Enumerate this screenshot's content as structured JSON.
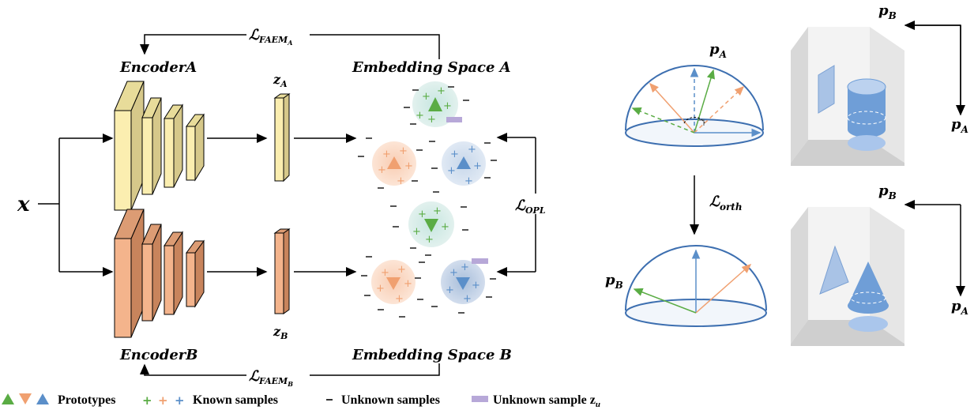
{
  "left": {
    "input_label": "x",
    "encoder_a_label": "EncoderA",
    "encoder_b_label": "EncoderB",
    "z_a_label": "z",
    "z_a_sub": "A",
    "z_b_label": "z",
    "z_b_sub": "B",
    "embedding_a_label": "Embedding Space A",
    "embedding_b_label": "Embedding Space B",
    "loss_faem_a": "ℒ",
    "loss_faem_a_sub": "FAEM",
    "loss_faem_a_subsub": "A",
    "loss_faem_b": "ℒ",
    "loss_faem_b_sub": "FAEM",
    "loss_faem_b_subsub": "B",
    "loss_opl": "ℒ",
    "loss_opl_sub": "OPL"
  },
  "right": {
    "loss_orth": "ℒ",
    "loss_orth_sub": "orth",
    "pa_top": "p",
    "pa_top_sub": "A",
    "pb_bottom": "p",
    "pb_bottom_sub": "B",
    "cube1_pb": "p",
    "cube1_pb_sub": "B",
    "cube1_pa": "p",
    "cube1_pa_sub": "A",
    "cube2_pb": "p",
    "cube2_pb_sub": "B",
    "cube2_pa": "p",
    "cube2_pa_sub": "A"
  },
  "legend": {
    "prototypes": "Prototypes",
    "known": "Known samples",
    "unknown": "Unknown samples",
    "unknown_zu": "Unknown sample z",
    "unknown_zu_sub": "u"
  },
  "colors": {
    "green": "#5aac44",
    "orange": "#f0a070",
    "blue": "#5b8fc9",
    "encoderA_face": "#fbeeb0",
    "encoderA_side": "#d6c88a",
    "encoderB_face": "#f4b48c",
    "encoderB_side": "#c8845c",
    "purple": "#b7a8d8"
  }
}
